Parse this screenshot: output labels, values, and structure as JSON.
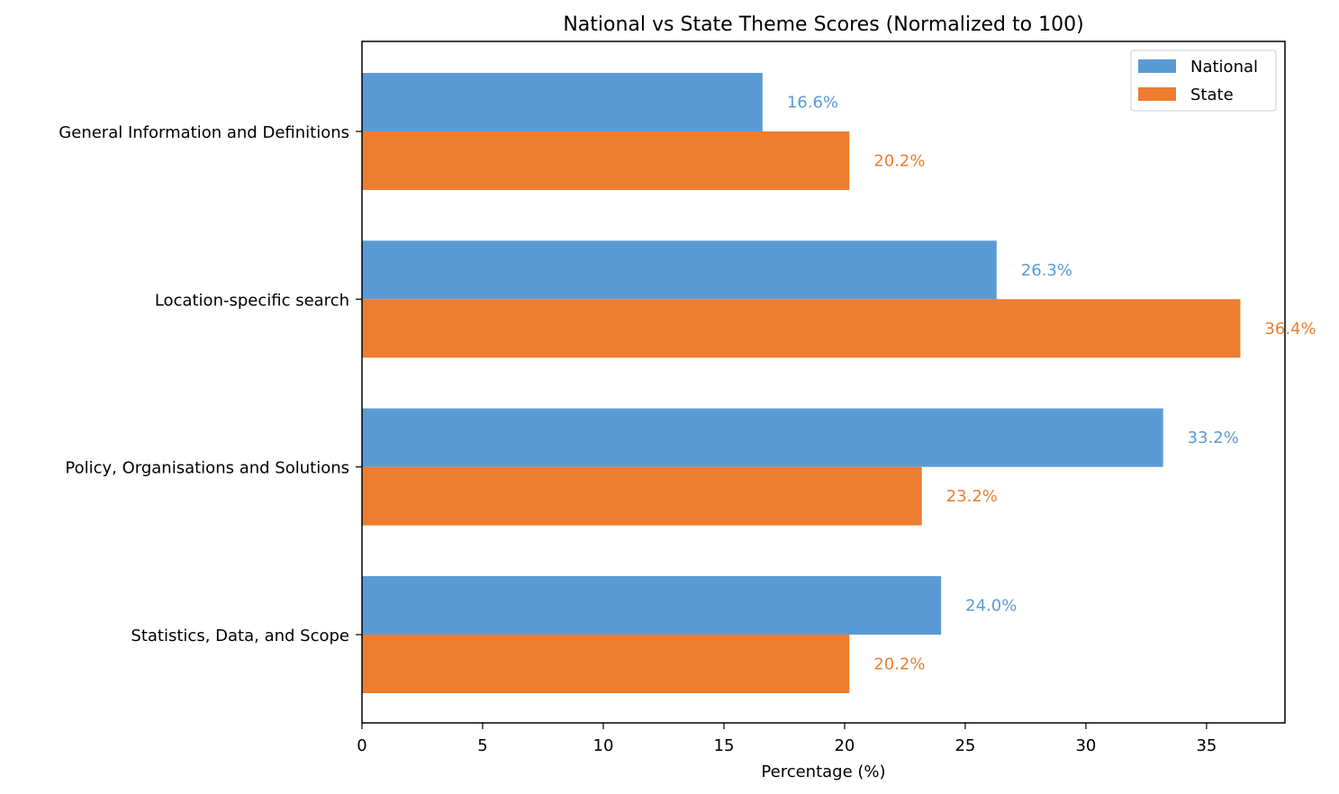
{
  "chart_data": {
    "type": "bar",
    "orientation": "horizontal",
    "title": "National vs State Theme Scores (Normalized to 100)",
    "xlabel": "Percentage (%)",
    "ylabel": "",
    "xlim": [
      0,
      38.25
    ],
    "xticks": [
      0,
      5,
      10,
      15,
      20,
      25,
      30,
      35
    ],
    "categories": [
      "General Information and Definitions",
      "Location-specific search",
      "Policy, Organisations and Solutions",
      "Statistics, Data, and Scope"
    ],
    "series": [
      {
        "name": "National",
        "color": "#5b9bd5",
        "values": [
          16.6,
          26.3,
          33.2,
          24.0
        ],
        "labels": [
          "16.6%",
          "26.3%",
          "33.2%",
          "24.0%"
        ]
      },
      {
        "name": "State",
        "color": "#ed7d31",
        "values": [
          20.2,
          36.4,
          23.2,
          20.2
        ],
        "labels": [
          "20.2%",
          "36.4%",
          "23.2%",
          "20.2%"
        ]
      }
    ],
    "legend_position": "top-right",
    "grid": false
  }
}
